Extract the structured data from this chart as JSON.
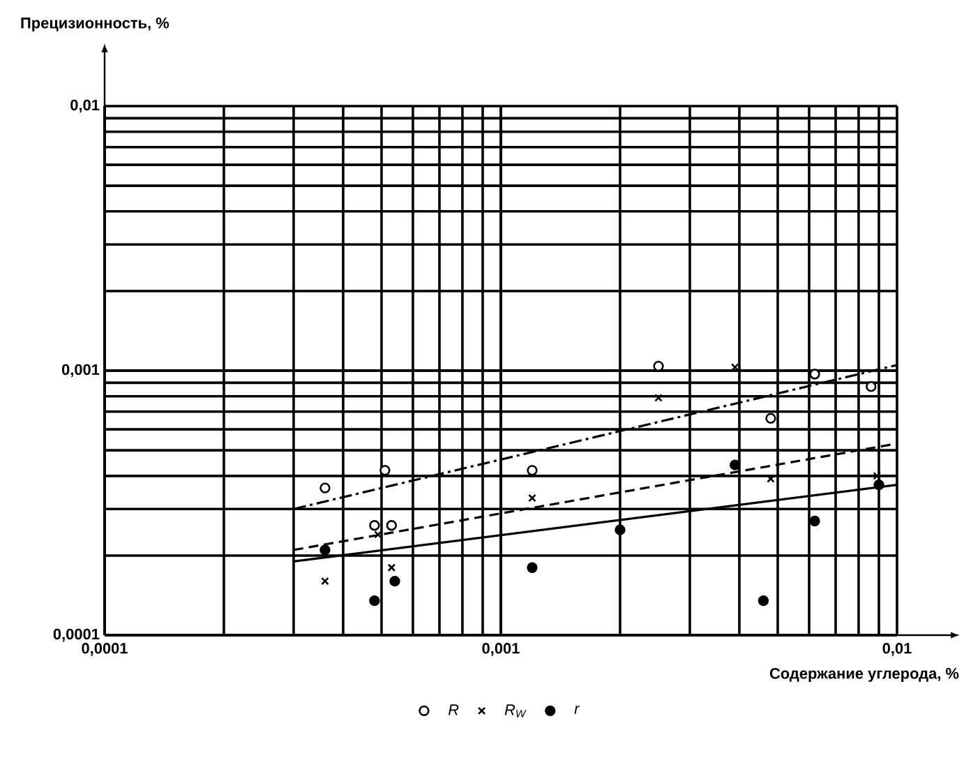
{
  "chart_data": {
    "type": "scatter",
    "xlabel": "Содержание углерода, %",
    "ylabel": "Прецизионность, %",
    "log": "xy",
    "xlim": [
      0.0001,
      0.01
    ],
    "ylim": [
      0.0001,
      0.01
    ],
    "xticks": [
      {
        "value": 0.0001,
        "label": "0,0001"
      },
      {
        "value": 0.001,
        "label": "0,001"
      },
      {
        "value": 0.01,
        "label": "0,01"
      }
    ],
    "yticks": [
      {
        "value": 0.0001,
        "label": "0,0001"
      },
      {
        "value": 0.001,
        "label": "0,001"
      },
      {
        "value": 0.01,
        "label": "0,01"
      }
    ],
    "grid": true,
    "legend": "bottom",
    "series": [
      {
        "name": "R",
        "marker": "circle",
        "color": "#ffffff",
        "x": [
          0.00036,
          0.00051,
          0.00048,
          0.00053,
          0.0012,
          0.0025,
          0.0062,
          0.0048,
          0.0086
        ],
        "values": [
          0.00036,
          0.00042,
          0.00026,
          0.00026,
          0.00042,
          0.00104,
          0.00097,
          0.00066,
          0.00087
        ]
      },
      {
        "type": "line",
        "line_style": "dashdot",
        "color": "#000000",
        "x": [
          0.0003,
          0.01
        ],
        "values": [
          0.0003,
          0.00105
        ]
      },
      {
        "name": "R$_{W}$",
        "marker": "cross",
        "color": "#000000",
        "x": [
          0.00036,
          0.00049,
          0.00053,
          0.0012,
          0.0025,
          0.0039,
          0.0048,
          0.0089
        ],
        "values": [
          0.00016,
          0.00024,
          0.00018,
          0.00033,
          0.00079,
          0.00103,
          0.00039,
          0.0004
        ]
      },
      {
        "type": "line",
        "line_style": "dashed",
        "color": "#000000",
        "x": [
          0.0003,
          0.01
        ],
        "values": [
          0.00021,
          0.00053
        ]
      },
      {
        "name": "r",
        "marker": "circle",
        "color": "#000000",
        "x": [
          0.00036,
          0.00048,
          0.00054,
          0.0012,
          0.002,
          0.0039,
          0.0062,
          0.0046,
          0.009
        ],
        "values": [
          0.00021,
          0.000135,
          0.00016,
          0.00018,
          0.00025,
          0.00044,
          0.00027,
          0.000135,
          0.00037
        ]
      },
      {
        "type": "line",
        "line_style": "solid",
        "color": "#000000",
        "x": [
          0.0003,
          0.01
        ],
        "values": [
          0.00019,
          0.00037
        ]
      }
    ]
  }
}
